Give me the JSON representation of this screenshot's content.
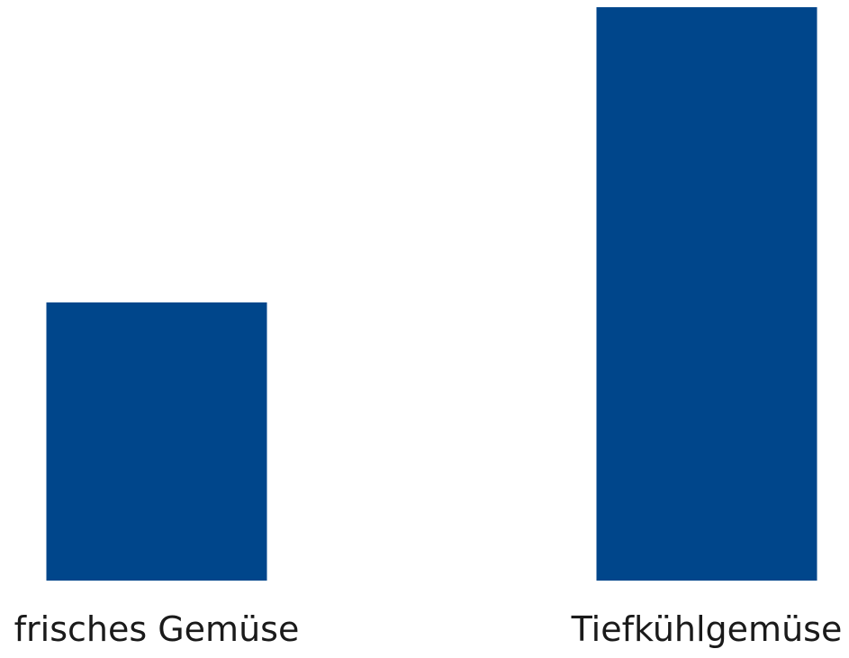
{
  "chart_data": {
    "type": "bar",
    "categories": [
      "frisches Gemüse",
      "Tiefkühlgemüse"
    ],
    "values": [
      48.5,
      100
    ],
    "ylim": [
      0,
      100
    ],
    "grid": false,
    "legend": "none",
    "bar_color": "#00468B",
    "title": "",
    "xlabel": "",
    "ylabel": ""
  }
}
